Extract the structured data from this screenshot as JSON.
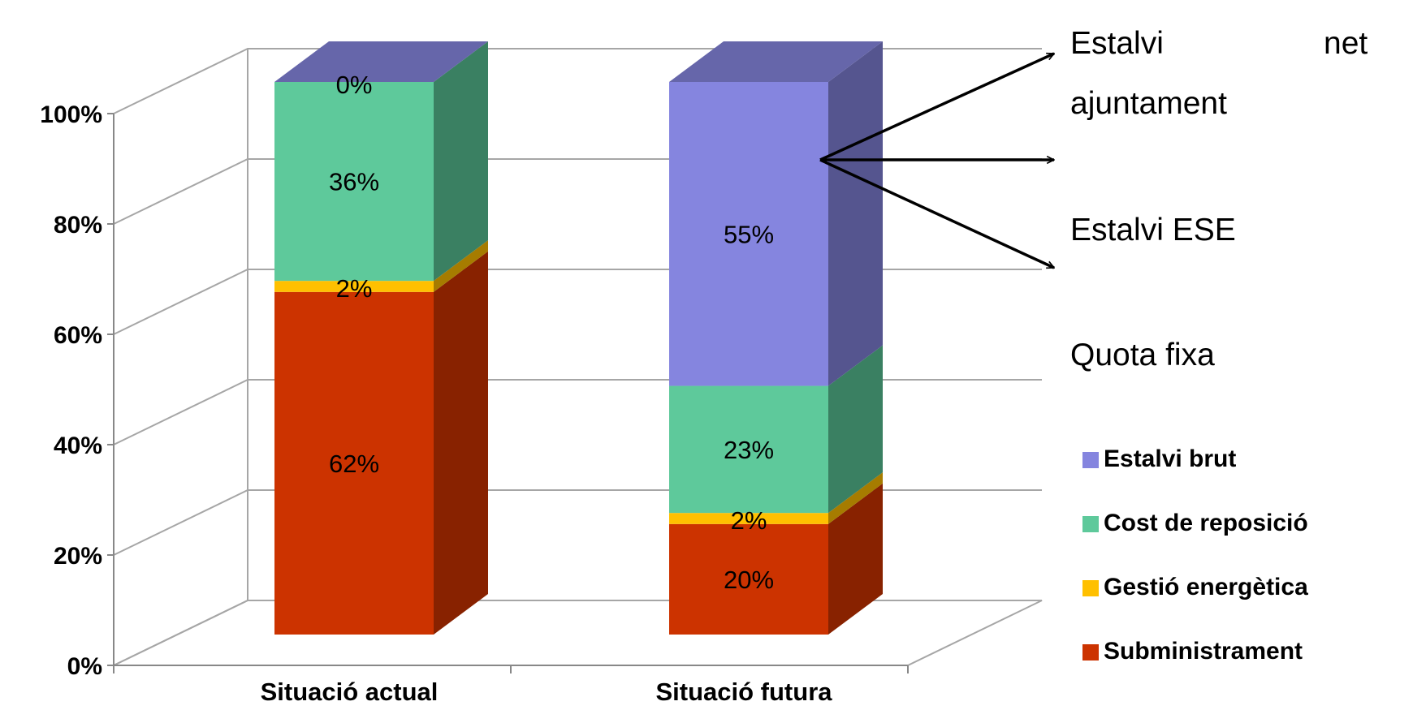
{
  "chart_data": {
    "type": "bar",
    "stacked": true,
    "three_d": true,
    "categories": [
      "Situació actual",
      "Situació futura"
    ],
    "series": [
      {
        "name": "Subministrament",
        "values": [
          62,
          20
        ],
        "labels": [
          "62%",
          "20%"
        ],
        "color": "#CC3300",
        "side_color": "#882200"
      },
      {
        "name": "Gestió energètica",
        "values": [
          2,
          2
        ],
        "labels": [
          "2%",
          "2%"
        ],
        "color": "#FFC000",
        "side_color": "#A67C00"
      },
      {
        "name": "Cost de reposició",
        "values": [
          36,
          23
        ],
        "labels": [
          "36%",
          "23%"
        ],
        "color": "#5EC99B",
        "side_color": "#3A8062"
      },
      {
        "name": "Estalvi brut",
        "values": [
          0,
          55
        ],
        "labels": [
          "0%",
          "55%"
        ],
        "color": "#8585DF",
        "side_color": "#55558F"
      }
    ],
    "y_ticks": [
      "0%",
      "20%",
      "40%",
      "60%",
      "80%",
      "100%"
    ],
    "ylim": [
      0,
      100
    ],
    "grid": true,
    "legend_position": "bottom-right",
    "title": "",
    "xlabel": "",
    "ylabel": ""
  },
  "annotations": {
    "estalvi_net_word1": "Estalvi",
    "estalvi_net_word2": "net",
    "estalvi_net_line2": "ajuntament",
    "estalvi_ese": "Estalvi ESE",
    "quota_fixa": "Quota fixa"
  }
}
